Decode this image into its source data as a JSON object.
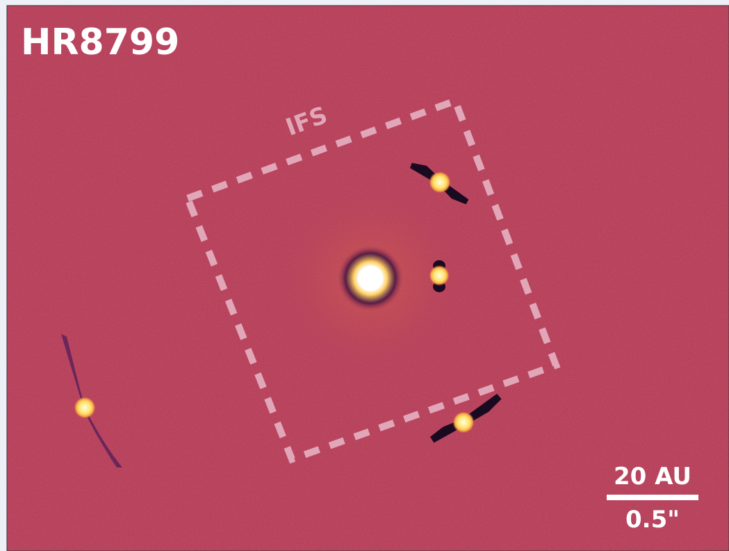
{
  "title": "HR8799",
  "box_label": "IFS",
  "scale_bar": {
    "top_label": "20 AU",
    "bottom_label": "0.5\""
  }
}
